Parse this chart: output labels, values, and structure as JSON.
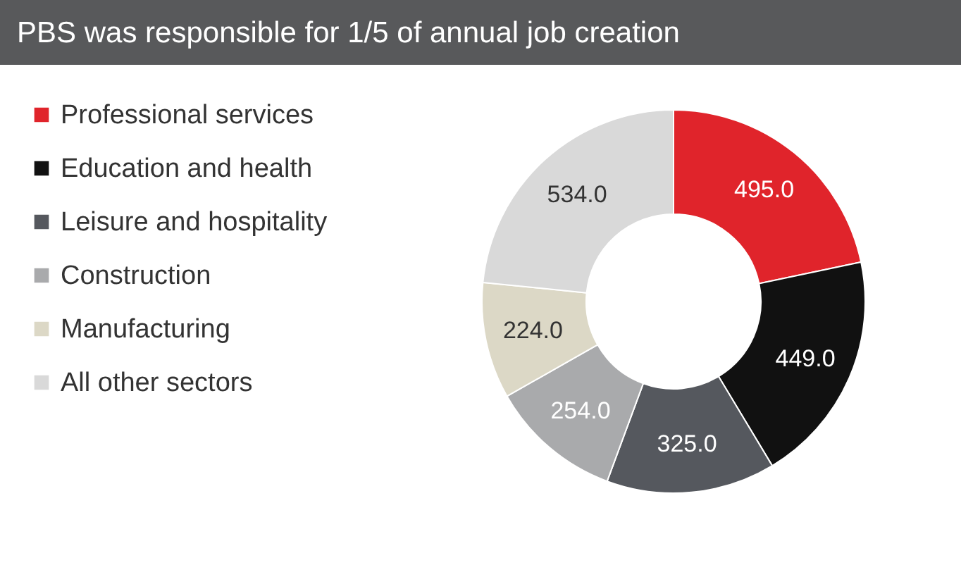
{
  "chart_data": {
    "type": "donut",
    "title": "PBS was responsible for 1/5 of annual job creation",
    "categories": [
      "Professional services",
      "Education and health",
      "Leisure and hospitality",
      "Construction",
      "Manufacturing",
      "All other sectors"
    ],
    "values": [
      495.0,
      449.0,
      325.0,
      254.0,
      224.0,
      534.0
    ],
    "colors": [
      "#e0242b",
      "#111111",
      "#55585e",
      "#a9aaac",
      "#dcd8c6",
      "#d9d9d9"
    ],
    "value_labels": [
      "495.0",
      "449.0",
      "325.0",
      "254.0",
      "224.0",
      "534.0"
    ],
    "legend": "left"
  }
}
